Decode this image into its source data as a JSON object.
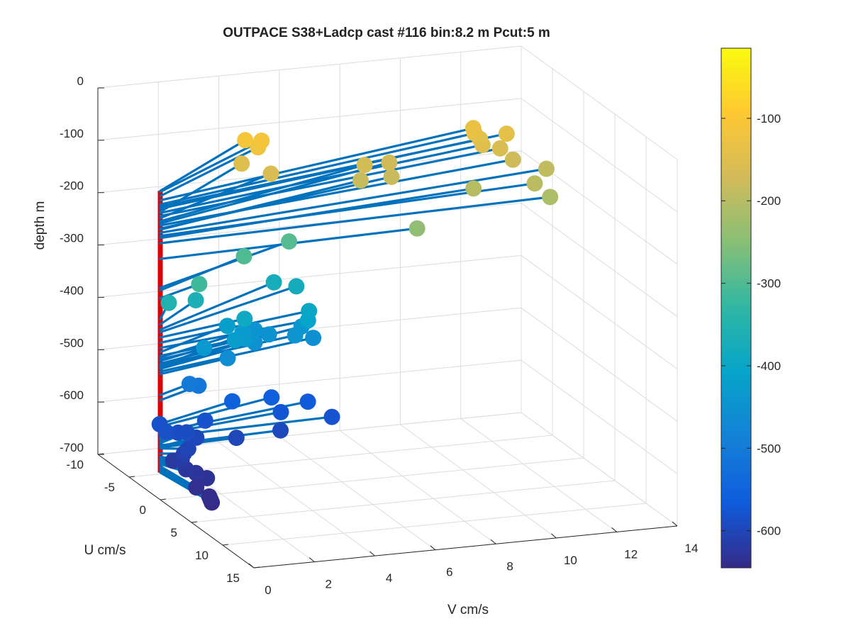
{
  "chart_data": {
    "type": "scatter3d",
    "title": "OUTPACE S38+Ladcp cast #116 bin:8.2 m  Pcut:5 m",
    "xlabel": "V cm/s",
    "ylabel": "U cm/s",
    "zlabel": "depth m",
    "x_ticks": [
      "0",
      "2",
      "4",
      "6",
      "8",
      "10",
      "12",
      "14"
    ],
    "y_ticks": [
      "-10",
      "-5",
      "0",
      "5",
      "10",
      "15"
    ],
    "z_ticks": [
      "0",
      "-100",
      "-200",
      "-300",
      "-400",
      "-500",
      "-600",
      "-700"
    ],
    "colorbar_ticks": [
      "-100",
      "-200",
      "-300",
      "-400",
      "-500",
      "-600"
    ],
    "xlim": [
      0,
      14
    ],
    "ylim": [
      -10,
      15
    ],
    "zlim": [
      -700,
      0
    ],
    "color_range": [
      -645,
      -15
    ],
    "grid": true,
    "colormap": "parula",
    "axis_line_color": "#e00000",
    "vector_color": "#0072bd",
    "points": [
      {
        "v": 4.5,
        "u": -8.2,
        "z": -110
      },
      {
        "v": 5.0,
        "u": -8.0,
        "z": -112
      },
      {
        "v": 4.8,
        "u": -7.6,
        "z": -120
      },
      {
        "v": 12.0,
        "u": -8.0,
        "z": -128
      },
      {
        "v": 12.0,
        "u": -7.8,
        "z": -136
      },
      {
        "v": 12.1,
        "u": -7.4,
        "z": -144
      },
      {
        "v": 4.3,
        "u": -7.8,
        "z": -150
      },
      {
        "v": 12.1,
        "u": -7.0,
        "z": -152
      },
      {
        "v": 12.6,
        "u": -6.6,
        "z": -158
      },
      {
        "v": 5.0,
        "u": -6.5,
        "z": -162
      },
      {
        "v": 13.0,
        "u": -7.5,
        "z": -140
      },
      {
        "v": 8.2,
        "u": -7.0,
        "z": -168
      },
      {
        "v": 9.1,
        "u": -7.4,
        "z": -172
      },
      {
        "v": 12.9,
        "u": -6.0,
        "z": -176
      },
      {
        "v": 8.8,
        "u": -5.6,
        "z": -182
      },
      {
        "v": 7.8,
        "u": -5.7,
        "z": -184
      },
      {
        "v": 13.8,
        "u": -5.0,
        "z": -190
      },
      {
        "v": 13.0,
        "u": -3.0,
        "z": -196
      },
      {
        "v": 11.1,
        "u": -3.6,
        "z": -200
      },
      {
        "v": 13.2,
        "u": -1.5,
        "z": -210
      },
      {
        "v": 8.7,
        "u": -1.0,
        "z": -240
      },
      {
        "v": 1.7,
        "u": -2.0,
        "z": -315
      },
      {
        "v": 3.8,
        "u": -5.0,
        "z": -300
      },
      {
        "v": 5.6,
        "u": -6.5,
        "z": -295
      },
      {
        "v": 0.9,
        "u": -3.0,
        "z": -355
      },
      {
        "v": 2.0,
        "u": -4.0,
        "z": -365
      },
      {
        "v": 5.2,
        "u": -7.0,
        "z": -375
      },
      {
        "v": 5.8,
        "u": -6.3,
        "z": -380
      },
      {
        "v": 3.2,
        "u": -2.0,
        "z": -390
      },
      {
        "v": 5.6,
        "u": -3.3,
        "z": -400
      },
      {
        "v": 5.4,
        "u": -2.5,
        "z": -410
      },
      {
        "v": 3.0,
        "u": -3.8,
        "z": -418
      },
      {
        "v": 2.8,
        "u": -1.6,
        "z": -425
      },
      {
        "v": 3.4,
        "u": -3.3,
        "z": -428
      },
      {
        "v": 3.3,
        "u": -2.4,
        "z": -432
      },
      {
        "v": 1.8,
        "u": -1.7,
        "z": -435
      },
      {
        "v": 5.6,
        "u": -4.5,
        "z": -440
      },
      {
        "v": 5.1,
        "u": -3.1,
        "z": -442
      },
      {
        "v": 4.2,
        "u": -5.2,
        "z": -445
      },
      {
        "v": 4.5,
        "u": -4.4,
        "z": -448
      },
      {
        "v": 3.8,
        "u": -3.3,
        "z": -450
      },
      {
        "v": 5.8,
        "u": -3.6,
        "z": -455
      },
      {
        "v": 2.6,
        "u": -1.8,
        "z": -460
      },
      {
        "v": 1.3,
        "u": -1.6,
        "z": -500
      },
      {
        "v": 1.7,
        "u": -2.1,
        "z": -510
      },
      {
        "v": 3.0,
        "u": -3.0,
        "z": -555
      },
      {
        "v": 4.4,
        "u": -3.5,
        "z": -560
      },
      {
        "v": 5.5,
        "u": -3.0,
        "z": -570
      },
      {
        "v": 4.4,
        "u": -2.0,
        "z": -575
      },
      {
        "v": 5.8,
        "u": -0.6,
        "z": -580
      },
      {
        "v": 2.0,
        "u": -2.5,
        "z": -582
      },
      {
        "v": 0.6,
        "u": -3.0,
        "z": -585
      },
      {
        "v": 0.5,
        "u": -1.5,
        "z": -586
      },
      {
        "v": 0.9,
        "u": -1.5,
        "z": -590
      },
      {
        "v": 1.2,
        "u": -1.6,
        "z": -592
      },
      {
        "v": 4.1,
        "u": -0.6,
        "z": -596
      },
      {
        "v": 1.4,
        "u": -1.0,
        "z": -598
      },
      {
        "v": 2.6,
        "u": -0.4,
        "z": -600
      },
      {
        "v": 0.8,
        "u": 0.6,
        "z": -602
      },
      {
        "v": 0.7,
        "u": 0.4,
        "z": -612
      },
      {
        "v": 0.5,
        "u": 1.0,
        "z": -618
      },
      {
        "v": 0.3,
        "u": 0.6,
        "z": -622
      },
      {
        "v": 0.4,
        "u": 2.2,
        "z": -625
      },
      {
        "v": 0.6,
        "u": 2.8,
        "z": -628
      },
      {
        "v": 0.8,
        "u": 3.6,
        "z": -632
      },
      {
        "v": 0.2,
        "u": 4.8,
        "z": -636
      },
      {
        "v": 0.3,
        "u": 6.4,
        "z": -640
      },
      {
        "v": 0.3,
        "u": 6.6,
        "z": -644
      },
      {
        "v": 0.3,
        "u": 6.8,
        "z": -648
      }
    ]
  }
}
